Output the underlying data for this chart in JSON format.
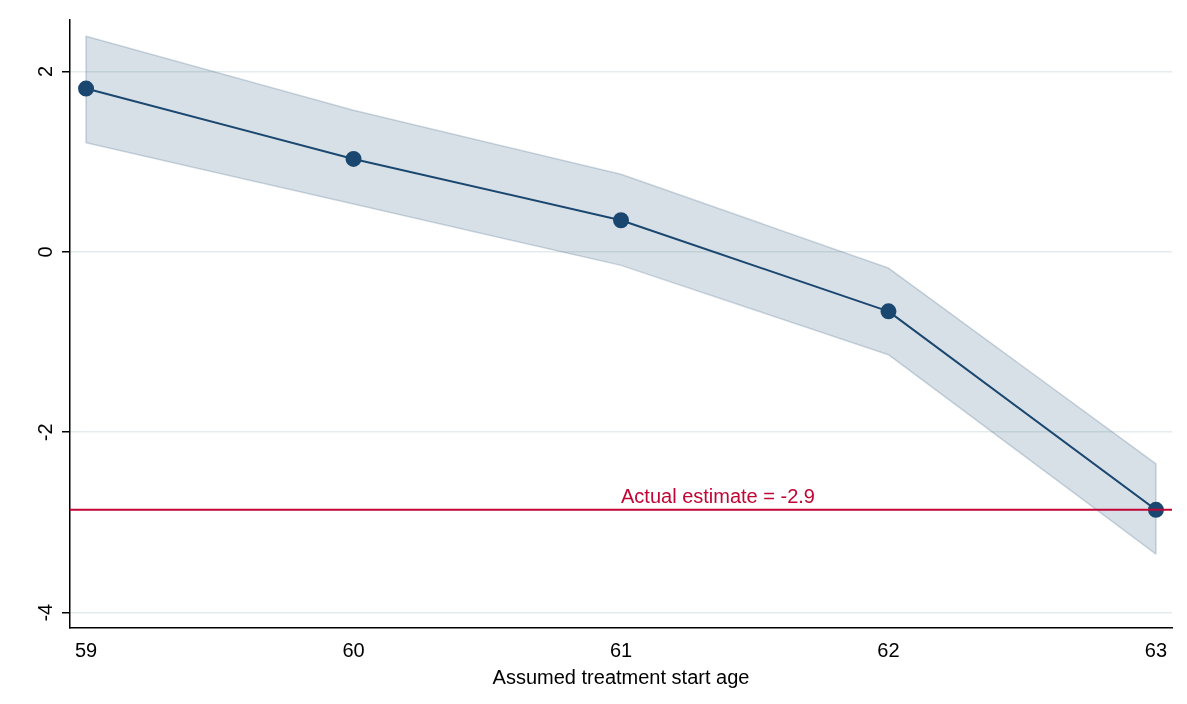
{
  "chart_data": {
    "type": "line",
    "xlabel": "Assumed treatment start age",
    "x": [
      59,
      60,
      61,
      62,
      63
    ],
    "series": [
      {
        "color": "#1a476f",
        "values": [
          1.81,
          1.03,
          0.35,
          -0.66,
          -2.86
        ],
        "lower": [
          1.21,
          0.53,
          -0.15,
          -1.14,
          -3.35
        ],
        "upper": [
          2.39,
          1.57,
          0.86,
          -0.18,
          -2.35
        ]
      }
    ],
    "xlim": [
      58.94,
      63.06
    ],
    "xticks": [
      59,
      60,
      61,
      62,
      63
    ],
    "ylim": [
      -4.17,
      2.57
    ],
    "yticks": [
      -4,
      -2,
      0,
      2
    ],
    "ref_lines": [
      {
        "axis": "y",
        "value": -2.86,
        "label": "Actual estimate = -2.9",
        "color": "#c10534"
      }
    ],
    "grid": "y",
    "marker": "circle",
    "line_style": "solid",
    "legend": false
  }
}
